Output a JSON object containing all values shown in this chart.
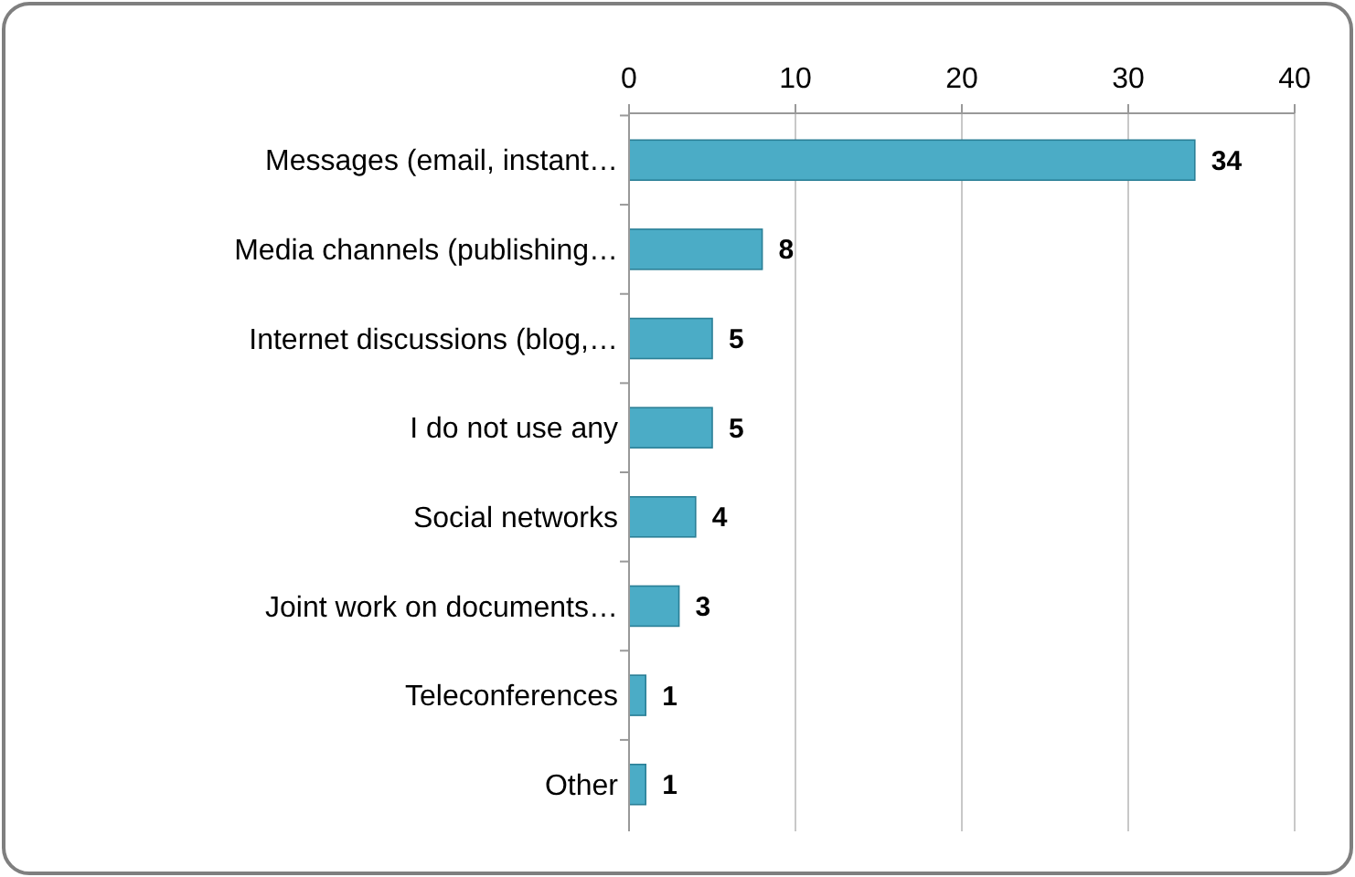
{
  "chart_data": {
    "type": "bar",
    "orientation": "horizontal",
    "categories": [
      "Messages (email, instant…",
      "Media channels (publishing…",
      "Internet discussions (blog,…",
      "I do not use any",
      "Social networks",
      "Joint work on documents…",
      "Teleconferences",
      "Other"
    ],
    "values": [
      34,
      8,
      5,
      5,
      4,
      3,
      1,
      1
    ],
    "color": "#4bacc6",
    "xlim": [
      0,
      40
    ],
    "xticks": [
      0,
      10,
      20,
      30,
      40
    ],
    "grid": "x",
    "data_labels": true
  }
}
